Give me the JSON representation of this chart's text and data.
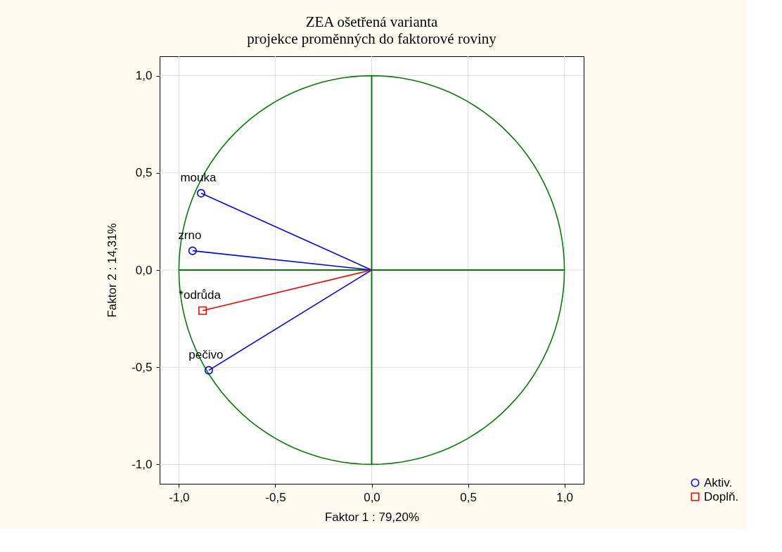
{
  "chart_data": {
    "type": "scatter",
    "title": "ZEA ošetřená varianta",
    "subtitle": "projekce proměnných do faktorové roviny",
    "xlabel": "Faktor 1 : 79,20%",
    "ylabel": "Faktor 2 : 14,31%",
    "xlim": [
      -1.1,
      1.1
    ],
    "ylim": [
      -1.1,
      1.1
    ],
    "xticks": [
      {
        "value": -1,
        "label": "-1,0"
      },
      {
        "value": -0.5,
        "label": "-0,5"
      },
      {
        "value": 0,
        "label": "0,0"
      },
      {
        "value": 0.5,
        "label": "0,5"
      },
      {
        "value": 1,
        "label": "1,0"
      }
    ],
    "yticks": [
      {
        "value": -1,
        "label": "-1,0"
      },
      {
        "value": -0.5,
        "label": "-0,5"
      },
      {
        "value": 0,
        "label": "0,0"
      },
      {
        "value": 0.5,
        "label": "0,5"
      },
      {
        "value": 1,
        "label": "1,0"
      }
    ],
    "grid": true,
    "legend": "bottom right",
    "series": [
      {
        "type": "line",
        "color": "#0000ff",
        "marker": "none",
        "x": [
          0,
          -0.885
        ],
        "values": [
          0,
          0.395
        ]
      },
      {
        "type": "line",
        "color": "#0000ff",
        "marker": "none",
        "x": [
          0,
          -0.929
        ],
        "values": [
          0,
          0.099
        ]
      },
      {
        "type": "line",
        "color": "#0000ff",
        "marker": "none",
        "x": [
          0,
          -0.845
        ],
        "values": [
          0,
          -0.516
        ]
      },
      {
        "type": "line",
        "color": "#ff0000",
        "marker": "none",
        "x": [
          0,
          -0.877
        ],
        "values": [
          0,
          -0.209
        ]
      },
      {
        "name": "Aktiv.",
        "color": "#0000ff",
        "marker": "circle",
        "x": [
          -0.885,
          -0.929,
          -0.845
        ],
        "values": [
          0.395,
          0.099,
          -0.516
        ]
      },
      {
        "name": "Doplň.",
        "color": "#ff0000",
        "marker": "square",
        "x": [
          -0.877
        ],
        "values": [
          -0.209
        ]
      }
    ],
    "annotations": [
      {
        "text": "mouka",
        "x": -0.885,
        "y": 0.395
      },
      {
        "text": "zrno",
        "x": -0.929,
        "y": 0.099
      },
      {
        "text": "*odrůda",
        "x": -0.877,
        "y": -0.209
      },
      {
        "text": "pečivo",
        "x": -0.845,
        "y": -0.516
      }
    ]
  }
}
